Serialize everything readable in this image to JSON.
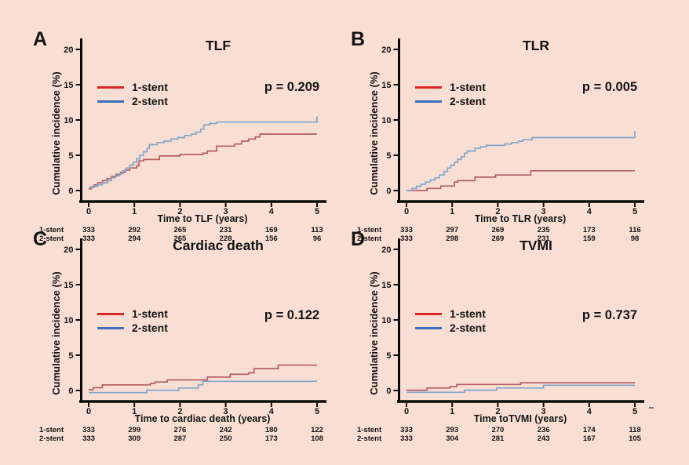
{
  "figure": {
    "background": "#f9ded4",
    "text_color": "#141414",
    "axis_color": "#0a0a0a"
  },
  "chart_data": [
    {
      "panel_label": "A",
      "type": "line",
      "subtype": "cumulative-incidence-step",
      "title": "TLF",
      "p_label": "p = 0.209",
      "xlabel": "Time to TLF (years)",
      "ylabel": "Cumulative incidence (%)",
      "xlim": [
        0,
        5
      ],
      "ylim": [
        0,
        20
      ],
      "xticks": [
        0,
        1,
        2,
        3,
        4,
        5
      ],
      "yticks": [
        0,
        5,
        10,
        15,
        20
      ],
      "grid": false,
      "legend_position": "upper-left",
      "series": [
        {
          "name": "1-stent",
          "legend_color": "#dc2626",
          "curve_color": "#b45f63",
          "steps": [
            [
              0,
              0.2
            ],
            [
              0.05,
              0.5
            ],
            [
              0.12,
              0.8
            ],
            [
              0.2,
              1.1
            ],
            [
              0.3,
              1.4
            ],
            [
              0.4,
              1.7
            ],
            [
              0.5,
              2.0
            ],
            [
              0.6,
              2.3
            ],
            [
              0.7,
              2.6
            ],
            [
              0.8,
              2.9
            ],
            [
              0.9,
              3.2
            ],
            [
              1.05,
              3.5
            ],
            [
              1.1,
              4.2
            ],
            [
              1.2,
              4.4
            ],
            [
              1.55,
              4.9
            ],
            [
              2.0,
              5.1
            ],
            [
              2.5,
              5.3
            ],
            [
              2.6,
              5.6
            ],
            [
              2.8,
              6.3
            ],
            [
              3.2,
              6.6
            ],
            [
              3.35,
              7.0
            ],
            [
              3.5,
              7.3
            ],
            [
              3.65,
              7.6
            ],
            [
              3.75,
              8.0
            ],
            [
              5,
              8.0
            ]
          ]
        },
        {
          "name": "2-stent",
          "legend_color": "#3a6ebf",
          "curve_color": "#7fa7ca",
          "steps": [
            [
              0,
              0.4
            ],
            [
              0.1,
              0.6
            ],
            [
              0.2,
              0.8
            ],
            [
              0.3,
              1.1
            ],
            [
              0.42,
              1.4
            ],
            [
              0.5,
              1.8
            ],
            [
              0.58,
              2.1
            ],
            [
              0.68,
              2.4
            ],
            [
              0.75,
              2.8
            ],
            [
              0.82,
              3.2
            ],
            [
              0.9,
              3.6
            ],
            [
              0.98,
              4.0
            ],
            [
              1.05,
              4.5
            ],
            [
              1.12,
              5.0
            ],
            [
              1.2,
              5.5
            ],
            [
              1.28,
              6.0
            ],
            [
              1.33,
              6.5
            ],
            [
              1.5,
              6.8
            ],
            [
              1.65,
              7.0
            ],
            [
              1.8,
              7.3
            ],
            [
              1.95,
              7.5
            ],
            [
              2.1,
              7.8
            ],
            [
              2.25,
              8.0
            ],
            [
              2.35,
              8.3
            ],
            [
              2.45,
              8.7
            ],
            [
              2.52,
              9.3
            ],
            [
              2.65,
              9.5
            ],
            [
              2.8,
              9.7
            ],
            [
              4.95,
              9.7
            ],
            [
              5,
              10.5
            ]
          ]
        }
      ],
      "at_risk": {
        "row_labels": [
          "1-stent",
          "2-stent"
        ],
        "times": [
          0,
          1,
          2,
          3,
          4,
          5
        ],
        "counts": [
          [
            333,
            292,
            265,
            231,
            169,
            113
          ],
          [
            333,
            294,
            265,
            228,
            156,
            96
          ]
        ]
      }
    },
    {
      "panel_label": "B",
      "type": "line",
      "subtype": "cumulative-incidence-step",
      "title": "TLR",
      "p_label": "p = 0.005",
      "xlabel": "Time to TLR (years)",
      "ylabel": "Cumulative incidence (%)",
      "xlim": [
        0,
        5
      ],
      "ylim": [
        0,
        20
      ],
      "xticks": [
        0,
        1,
        2,
        3,
        4,
        5
      ],
      "yticks": [
        0,
        5,
        10,
        15,
        20
      ],
      "grid": false,
      "legend_position": "upper-left",
      "series": [
        {
          "name": "1-stent",
          "legend_color": "#dc2626",
          "curve_color": "#b45f63",
          "steps": [
            [
              0,
              0.0
            ],
            [
              0.45,
              0.3
            ],
            [
              0.75,
              0.65
            ],
            [
              1.05,
              1.2
            ],
            [
              1.12,
              1.4
            ],
            [
              1.5,
              1.9
            ],
            [
              1.95,
              2.2
            ],
            [
              2.72,
              2.8
            ],
            [
              5,
              2.8
            ]
          ]
        },
        {
          "name": "2-stent",
          "legend_color": "#3a6ebf",
          "curve_color": "#7fa7ca",
          "steps": [
            [
              0,
              0.0
            ],
            [
              0.12,
              0.3
            ],
            [
              0.22,
              0.6
            ],
            [
              0.32,
              0.9
            ],
            [
              0.42,
              1.2
            ],
            [
              0.52,
              1.5
            ],
            [
              0.62,
              1.8
            ],
            [
              0.72,
              2.2
            ],
            [
              0.82,
              2.7
            ],
            [
              0.9,
              3.2
            ],
            [
              0.97,
              3.6
            ],
            [
              1.05,
              4.0
            ],
            [
              1.12,
              4.4
            ],
            [
              1.2,
              4.8
            ],
            [
              1.27,
              5.3
            ],
            [
              1.33,
              5.6
            ],
            [
              1.5,
              6.0
            ],
            [
              1.62,
              6.2
            ],
            [
              1.75,
              6.4
            ],
            [
              2.15,
              6.6
            ],
            [
              2.3,
              6.8
            ],
            [
              2.45,
              7.0
            ],
            [
              2.55,
              7.2
            ],
            [
              2.75,
              7.5
            ],
            [
              4.95,
              7.5
            ],
            [
              5,
              8.4
            ]
          ]
        }
      ],
      "at_risk": {
        "row_labels": [
          "1-stent",
          "2-stent"
        ],
        "times": [
          0,
          1,
          2,
          3,
          4,
          5
        ],
        "counts": [
          [
            333,
            297,
            269,
            235,
            173,
            116
          ],
          [
            333,
            298,
            269,
            231,
            159,
            98
          ]
        ]
      }
    },
    {
      "panel_label": "C",
      "type": "line",
      "subtype": "cumulative-incidence-step",
      "title": "Cardiac death",
      "p_label": "p = 0.122",
      "xlabel": "Time to cardiac death (years)",
      "ylabel": "Cumulative incidence (%)",
      "xlim": [
        0,
        5
      ],
      "ylim": [
        0,
        20
      ],
      "xticks": [
        0,
        1,
        2,
        3,
        4,
        5
      ],
      "yticks": [
        0,
        5,
        10,
        15,
        20
      ],
      "grid": false,
      "legend_position": "middle-left",
      "series": [
        {
          "name": "1-stent",
          "legend_color": "#dc2626",
          "curve_color": "#b45f63",
          "steps": [
            [
              0,
              0.1
            ],
            [
              0.1,
              0.4
            ],
            [
              0.3,
              0.8
            ],
            [
              1.35,
              1.0
            ],
            [
              1.45,
              1.2
            ],
            [
              1.72,
              1.5
            ],
            [
              2.6,
              1.9
            ],
            [
              3.1,
              2.3
            ],
            [
              3.5,
              2.5
            ],
            [
              3.62,
              3.1
            ],
            [
              4.15,
              3.6
            ],
            [
              5,
              3.6
            ]
          ]
        },
        {
          "name": "2-stent",
          "legend_color": "#3a6ebf",
          "curve_color": "#7fa7ca",
          "steps": [
            [
              0,
              -0.3
            ],
            [
              1.27,
              0.05
            ],
            [
              1.97,
              0.35
            ],
            [
              2.4,
              0.8
            ],
            [
              2.5,
              1.3
            ],
            [
              5,
              1.3
            ]
          ]
        }
      ],
      "at_risk": {
        "row_labels": [
          "1-stent",
          "2-stent"
        ],
        "times": [
          0,
          1,
          2,
          3,
          4,
          5
        ],
        "counts": [
          [
            333,
            299,
            276,
            242,
            180,
            122
          ],
          [
            333,
            309,
            287,
            250,
            173,
            108
          ]
        ]
      }
    },
    {
      "panel_label": "D",
      "type": "line",
      "subtype": "cumulative-incidence-step",
      "title": "TVMI",
      "p_label": "p = 0.737",
      "xlabel": "Time toTVMI (years)",
      "ylabel": "Cumulative incidence (%)",
      "xlim": [
        0,
        5
      ],
      "ylim": [
        0,
        20
      ],
      "xticks": [
        0,
        1,
        2,
        3,
        4,
        5
      ],
      "yticks": [
        0,
        5,
        10,
        15,
        20
      ],
      "grid": false,
      "legend_position": "middle-left",
      "series": [
        {
          "name": "1-stent",
          "legend_color": "#dc2626",
          "curve_color": "#b45f63",
          "steps": [
            [
              0,
              0.05
            ],
            [
              0.45,
              0.35
            ],
            [
              0.95,
              0.55
            ],
            [
              1.1,
              0.85
            ],
            [
              2.5,
              1.1
            ],
            [
              5,
              1.1
            ]
          ]
        },
        {
          "name": "2-stent",
          "legend_color": "#3a6ebf",
          "curve_color": "#7fa7ca",
          "steps": [
            [
              0,
              -0.25
            ],
            [
              1.27,
              0.05
            ],
            [
              1.97,
              0.35
            ],
            [
              3.0,
              0.75
            ],
            [
              5,
              0.75
            ]
          ]
        }
      ],
      "at_risk": {
        "row_labels": [
          "1-stent",
          "2-stent"
        ],
        "times": [
          0,
          1,
          2,
          3,
          4,
          5
        ],
        "counts": [
          [
            333,
            293,
            270,
            236,
            174,
            118
          ],
          [
            333,
            304,
            281,
            243,
            167,
            105
          ]
        ]
      }
    }
  ]
}
